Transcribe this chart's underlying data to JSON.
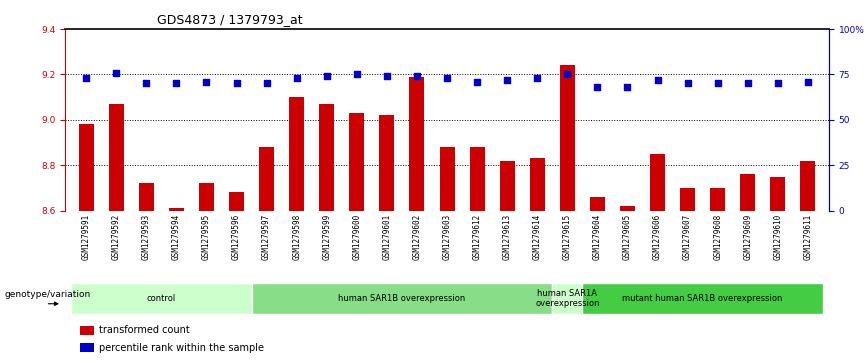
{
  "title": "GDS4873 / 1379793_at",
  "samples": [
    "GSM1279591",
    "GSM1279592",
    "GSM1279593",
    "GSM1279594",
    "GSM1279595",
    "GSM1279596",
    "GSM1279597",
    "GSM1279598",
    "GSM1279599",
    "GSM1279600",
    "GSM1279601",
    "GSM1279602",
    "GSM1279603",
    "GSM1279612",
    "GSM1279613",
    "GSM1279614",
    "GSM1279615",
    "GSM1279604",
    "GSM1279605",
    "GSM1279606",
    "GSM1279607",
    "GSM1279608",
    "GSM1279609",
    "GSM1279610",
    "GSM1279611"
  ],
  "bar_values": [
    8.98,
    9.07,
    8.72,
    8.61,
    8.72,
    8.68,
    8.88,
    9.1,
    9.07,
    9.03,
    9.02,
    9.19,
    8.88,
    8.88,
    8.82,
    8.83,
    9.24,
    8.66,
    8.62,
    8.85,
    8.7,
    8.7,
    8.76,
    8.75,
    8.82
  ],
  "percentile_values": [
    73,
    76,
    70,
    70,
    71,
    70,
    70,
    73,
    74,
    75,
    74,
    74,
    73,
    71,
    72,
    73,
    75,
    68,
    68,
    72,
    70,
    70,
    70,
    70,
    71
  ],
  "ylim_left": [
    8.6,
    9.4
  ],
  "ylim_right": [
    0,
    100
  ],
  "bar_color": "#cc0000",
  "dot_color": "#0000cc",
  "groups": [
    {
      "label": "control",
      "start": 0,
      "end": 5,
      "color": "#ccffcc"
    },
    {
      "label": "human SAR1B overexpression",
      "start": 6,
      "end": 15,
      "color": "#88dd88"
    },
    {
      "label": "human SAR1A\noverexpression",
      "start": 16,
      "end": 16,
      "color": "#ccffcc"
    },
    {
      "label": "mutant human SAR1B overexpression",
      "start": 17,
      "end": 24,
      "color": "#44cc44"
    }
  ],
  "yticks_left": [
    8.6,
    8.8,
    9.0,
    9.2,
    9.4
  ],
  "yticks_right": [
    0,
    25,
    50,
    75,
    100
  ],
  "ytick_right_labels": [
    "0",
    "25",
    "50",
    "75",
    "100%"
  ],
  "grid_lines": [
    8.8,
    9.0,
    9.2
  ],
  "background_left": "#ffffff",
  "title_fontsize": 9,
  "tick_fontsize": 6.5,
  "label_fontsize": 7
}
